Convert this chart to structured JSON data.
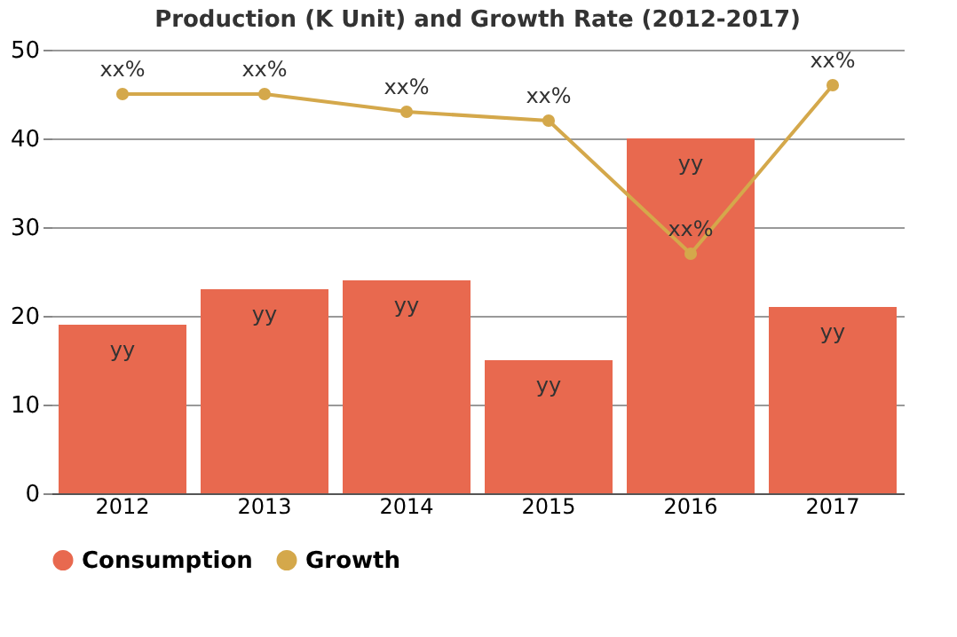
{
  "chart_data": {
    "type": "bar",
    "title": "Production (K Unit) and Growth Rate (2012-2017)",
    "categories": [
      "2012",
      "2013",
      "2014",
      "2015",
      "2016",
      "2017"
    ],
    "series": [
      {
        "name": "Consumption",
        "color": "#e8694f",
        "values": [
          19,
          23,
          24,
          15,
          40,
          21
        ],
        "value_labels": [
          "yy",
          "yy",
          "yy",
          "yy",
          "yy",
          "yy"
        ]
      },
      {
        "name": "Growth",
        "type": "line",
        "color": "#d4a84b",
        "values": [
          45,
          45,
          43,
          42,
          27,
          46
        ],
        "value_labels": [
          "xx%",
          "xx%",
          "xx%",
          "xx%",
          "xx%",
          "xx%"
        ]
      }
    ],
    "ylim": [
      0,
      50
    ],
    "yticks": [
      0,
      10,
      20,
      30,
      40,
      50
    ],
    "grid": "y",
    "legend": "bottom",
    "marker": "circle",
    "line_style": "solid"
  }
}
